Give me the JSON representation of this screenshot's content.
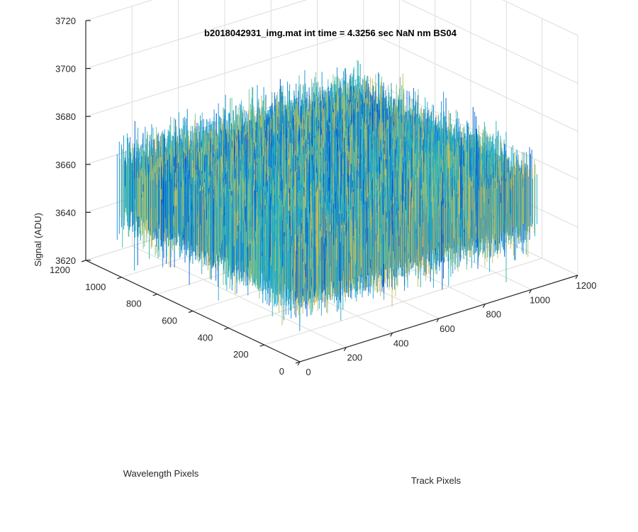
{
  "chart_data": {
    "type": "surface-mesh-3d",
    "title": "b2018042931_img.mat int time = 4.3256 sec  NaN nm BS04",
    "xlabel": "Track Pixels",
    "ylabel": "Wavelength Pixels",
    "zlabel": "Signal (ADU)",
    "xlim": [
      0,
      1200
    ],
    "ylim": [
      0,
      1200
    ],
    "zlim": [
      3620,
      3720
    ],
    "x_ticks": [
      "0",
      "200",
      "400",
      "600",
      "800",
      "1000",
      "1200"
    ],
    "y_ticks": [
      "0",
      "200",
      "400",
      "600",
      "800",
      "1000",
      "1200"
    ],
    "z_ticks": [
      "3620",
      "3640",
      "3660",
      "3680",
      "3700",
      "3720"
    ],
    "data_extent": {
      "x": [
        0,
        1024
      ],
      "y": [
        0,
        1024
      ]
    },
    "signal_range": [
      3625,
      3705
    ],
    "signal_typical": 3657,
    "grid": true,
    "colormap": [
      "#0a5fcf",
      "#138bd6",
      "#1ba8c9",
      "#3ab8b0",
      "#7fbe8a",
      "#c9bd55"
    ]
  }
}
